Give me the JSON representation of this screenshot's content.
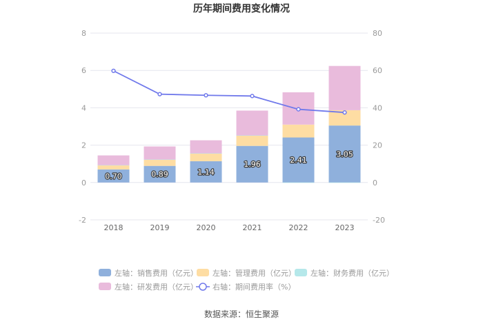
{
  "title": "历年期间费用变化情况",
  "source": "数据来源：恒生聚源",
  "chart_data": {
    "type": "bar",
    "title": "历年期间费用变化情况",
    "categories": [
      "2018",
      "2019",
      "2020",
      "2021",
      "2022",
      "2023"
    ],
    "stacked": true,
    "left_axis": {
      "ylim": [
        -2,
        8
      ],
      "ticks": [
        -2,
        0,
        2,
        4,
        6,
        8
      ]
    },
    "right_axis": {
      "ylim": [
        -20,
        80
      ],
      "ticks": [
        -20,
        0,
        20,
        40,
        60,
        80
      ]
    },
    "grid": true,
    "legend_placement": "bottom",
    "series": [
      {
        "name": "左轴：销售费用（亿元）",
        "type": "bar",
        "axis": "left",
        "color": "#8fb0dc",
        "values": [
          0.7,
          0.89,
          1.14,
          1.96,
          2.41,
          3.05
        ],
        "data_labels": [
          "0.70",
          "0.89",
          "1.14",
          "1.96",
          "2.41",
          "3.05"
        ]
      },
      {
        "name": "左轴：管理费用（亿元）",
        "type": "bar",
        "axis": "left",
        "color": "#fedda3",
        "values": [
          0.22,
          0.33,
          0.41,
          0.55,
          0.69,
          0.82
        ]
      },
      {
        "name": "左轴：财务费用（亿元）",
        "type": "bar",
        "axis": "left",
        "color": "#b5e8ea",
        "values": [
          0.01,
          0.01,
          0.01,
          0.01,
          -0.01,
          -0.01
        ]
      },
      {
        "name": "左轴：研发费用（亿元）",
        "type": "bar",
        "axis": "left",
        "color": "#e9bbdc",
        "values": [
          0.52,
          0.7,
          0.7,
          1.33,
          1.73,
          2.37
        ]
      },
      {
        "name": "右轴：期间费用率（%）",
        "type": "line",
        "axis": "right",
        "color": "#7079eb",
        "values": [
          59.8,
          47.3,
          46.7,
          46.3,
          39.2,
          37.5
        ]
      }
    ]
  }
}
